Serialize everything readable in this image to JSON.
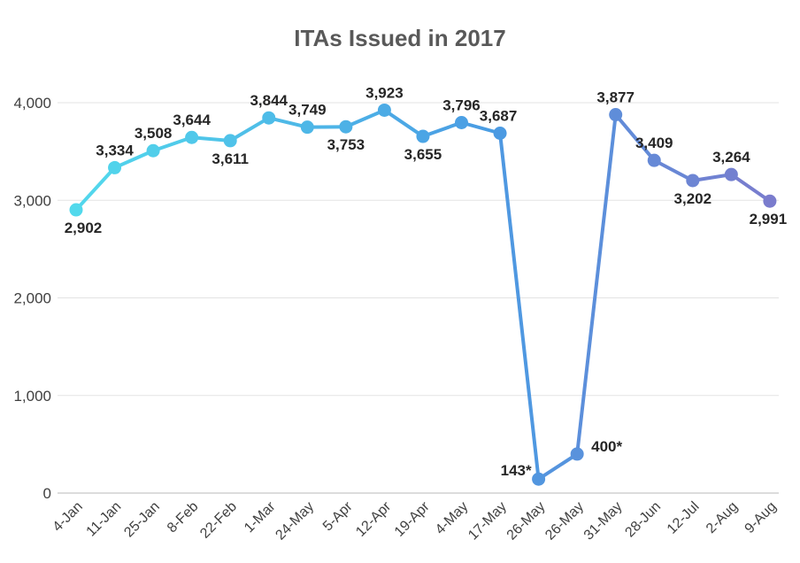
{
  "chart_data": {
    "type": "line",
    "title": "ITAs Issued in 2017",
    "xlabel": "",
    "ylabel": "",
    "ylim": [
      0,
      4000
    ],
    "yticks": [
      0,
      1000,
      2000,
      3000,
      4000
    ],
    "ytick_labels": [
      "0",
      "1,000",
      "2,000",
      "3,000",
      "4,000"
    ],
    "grid": true,
    "categories": [
      "4-Jan",
      "11-Jan",
      "25-Jan",
      "8-Feb",
      "22-Feb",
      "1-Mar",
      "24-May",
      "5-Apr",
      "12-Apr",
      "19-Apr",
      "4-May",
      "17-May",
      "26-May",
      "26-May",
      "31-May",
      "28-Jun",
      "12-Jul",
      "2-Aug",
      "9-Aug"
    ],
    "series": [
      {
        "name": "ITAs",
        "values": [
          2902,
          3334,
          3508,
          3644,
          3611,
          3844,
          3749,
          3753,
          3923,
          3655,
          3796,
          3687,
          143,
          400,
          3877,
          3409,
          3202,
          3264,
          2991
        ],
        "data_labels": [
          "2,902",
          "3,334",
          "3,508",
          "3,644",
          "3,611",
          "3,844",
          "3,749",
          "3,753",
          "3,923",
          "3,655",
          "3,796",
          "3,687",
          "143*",
          "400*",
          "3,877",
          "3,409",
          "3,202",
          "3,264",
          "2,991"
        ]
      }
    ],
    "colors": {
      "start": "#52d9ec",
      "middle": "#4a9be3",
      "end": "#7a7ccd"
    }
  }
}
